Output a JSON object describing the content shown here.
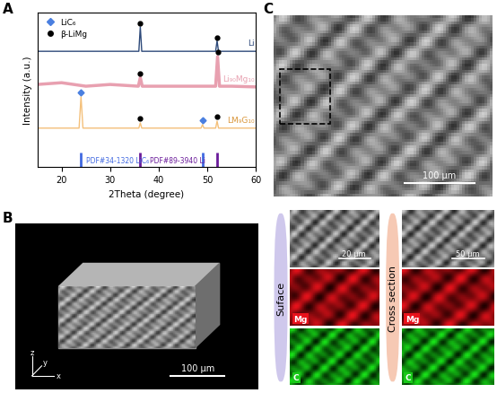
{
  "chart_data": {
    "type": "line",
    "xlabel": "2Theta (degree)",
    "ylabel": "Intensity (a.u.)",
    "xlim": [
      15,
      60
    ],
    "xticks": [
      20,
      30,
      40,
      50,
      60
    ],
    "ylim": [
      0,
      4.4
    ],
    "tick_labels": "x",
    "legend": "upper left",
    "legend_entries": [
      {
        "name": "LiC₆",
        "color": "#4a7fe0",
        "marker": "diamond"
      },
      {
        "name": "β-LiMg",
        "color": "#000000",
        "marker": "circle"
      }
    ],
    "series": [
      {
        "name": "Li",
        "color": "#2e4a7a",
        "x": [
          15,
          35.9,
          36.2,
          36.5,
          51.7,
          52.0,
          52.3,
          60
        ],
        "values": [
          3.3,
          3.3,
          4.0,
          3.3,
          3.3,
          3.6,
          3.3,
          3.3
        ],
        "peak_marks": [
          {
            "phase": "β-LiMg",
            "x": 36.2,
            "y": 4.1
          },
          {
            "phase": "β-LiMg",
            "x": 52.0,
            "y": 3.7
          }
        ]
      },
      {
        "name": "Li₉₀Mg₁₀",
        "color": "#e8a0b0",
        "x": [
          15,
          20,
          25,
          30,
          35.8,
          36.2,
          36.6,
          40,
          45,
          51.7,
          52.1,
          52.5,
          55,
          60
        ],
        "values": [
          2.35,
          2.4,
          2.3,
          2.35,
          2.3,
          2.55,
          2.3,
          2.3,
          2.3,
          2.3,
          3.15,
          2.3,
          2.3,
          2.28
        ],
        "peak_marks": [
          {
            "phase": "β-LiMg",
            "x": 36.2,
            "y": 2.65
          },
          {
            "phase": "β-LiMg",
            "x": 52.1,
            "y": 3.27
          }
        ]
      },
      {
        "name": "LM₉G₁₀",
        "color": "#f4c07a",
        "x": [
          15,
          23.6,
          24.0,
          24.4,
          35.9,
          36.2,
          36.5,
          48.7,
          49.0,
          49.3,
          51.7,
          52.0,
          52.3,
          60
        ],
        "values": [
          1.1,
          1.1,
          2.0,
          1.1,
          1.1,
          1.25,
          1.1,
          1.1,
          1.2,
          1.1,
          1.1,
          1.3,
          1.1,
          1.1
        ],
        "peak_marks": [
          {
            "phase": "LiC₆",
            "x": 24.0,
            "y": 2.12
          },
          {
            "phase": "β-LiMg",
            "x": 36.2,
            "y": 1.37
          },
          {
            "phase": "LiC₆",
            "x": 49.0,
            "y": 1.32
          },
          {
            "phase": "β-LiMg",
            "x": 52.0,
            "y": 1.42
          }
        ]
      }
    ],
    "references": [
      {
        "name": "PDF#34-1320 LiC₆",
        "color": "#4169e1",
        "x": [
          24.0,
          49.0
        ],
        "values": [
          0.4,
          0.4
        ]
      },
      {
        "name": "PDF#89-3940 Li",
        "color": "#6a1b9a",
        "x": [
          36.2,
          52.0
        ],
        "values": [
          0.4,
          0.4
        ]
      }
    ]
  },
  "panel_labels": [
    "A",
    "B",
    "C"
  ],
  "image_B": {
    "axis_labels": [
      "x",
      "y",
      "z"
    ],
    "scale_bar": "100 μm"
  },
  "image_C": {
    "scale_bars": {
      "main": "100 μm",
      "surface": "20 μm",
      "cross_section": "50 μm"
    },
    "columns": [
      "Suface",
      "Cross section"
    ],
    "maps": [
      "Mg",
      "C"
    ]
  }
}
